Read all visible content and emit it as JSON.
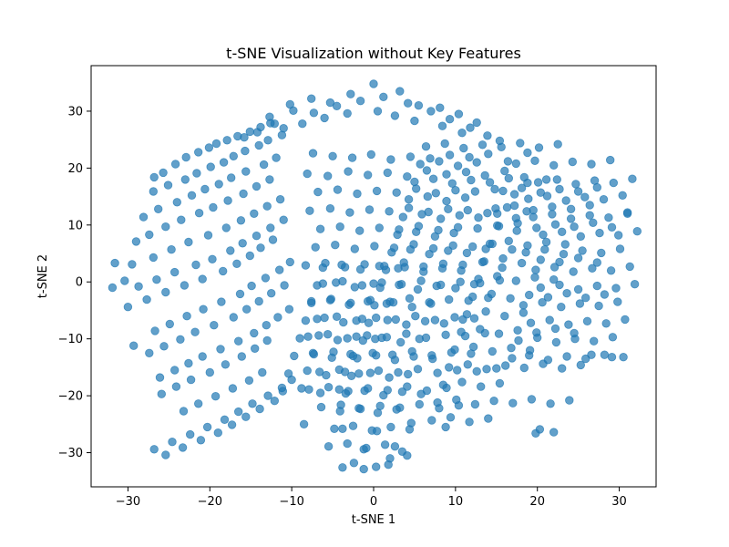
{
  "chart_data": {
    "type": "scatter",
    "title": "t-SNE Visualization without Key Features",
    "xlabel": "t-SNE 1",
    "ylabel": "t-SNE 2",
    "xlim": [
      -34.5,
      34.5
    ],
    "ylim": [
      -36,
      38
    ],
    "xticks": [
      -30,
      -20,
      -10,
      0,
      10,
      20,
      30
    ],
    "yticks": [
      -30,
      -20,
      -10,
      0,
      10,
      20,
      30
    ],
    "grid": false,
    "legend": "none",
    "marker_color": "#1f77b4",
    "marker_opacity": 0.7,
    "x": [
      0.0,
      3.2,
      -2.8,
      5.5,
      -5.3,
      8.1,
      -7.6,
      10.4,
      -10.2,
      12.6,
      -12.7,
      1.2,
      -1.6,
      4.2,
      -4.5,
      7.0,
      -7.3,
      9.3,
      -9.8,
      11.8,
      -12.1,
      0.5,
      2.6,
      -3.2,
      5.0,
      -6.0,
      8.4,
      -8.7,
      10.8,
      -11.0,
      13.9,
      -14.2,
      15.4,
      -15.8,
      -19.2,
      -20.1,
      -17.9,
      -21.4,
      -16.6,
      -22.9,
      -15.1,
      -24.2,
      -13.8,
      -25.7,
      -12.6,
      -26.8,
      -18.3,
      -19.9,
      -17.1,
      -21.6,
      -15.7,
      -23.0,
      -14.0,
      -25.1,
      -12.9,
      -26.9,
      -11.2,
      -20.6,
      -18.9,
      -22.2,
      -17.4,
      -24.0,
      -15.6,
      -26.3,
      -13.4,
      -28.1,
      -11.9,
      -21.3,
      -19.6,
      -23.5,
      -17.8,
      -25.4,
      -15.9,
      -27.4,
      -14.3,
      -29.0,
      -12.7,
      -20.2,
      -18.0,
      -22.6,
      -16.2,
      -24.7,
      -14.6,
      -26.9,
      -13.0,
      -29.5,
      -11.4,
      -19.7,
      -17.5,
      -21.7,
      -16.0,
      -24.3,
      -14.3,
      -26.5,
      -12.6,
      -28.7,
      -11.0,
      -20.9,
      -18.4,
      -23.1,
      -16.7,
      -25.4,
      -15.1,
      -27.7,
      -13.8,
      -30.0,
      -12.3,
      -31.6,
      -31.9,
      -30.4,
      -18.6,
      -16.3,
      -20.8,
      -14.9,
      -22.8,
      -13.2,
      -24.9,
      -11.5,
      -26.7,
      -10.2,
      -29.3,
      -19.5,
      -17.1,
      -21.8,
      -15.5,
      -23.6,
      -14.0,
      -25.6,
      -12.5,
      -27.4,
      -10.9,
      -18.7,
      -16.5,
      -20.9,
      -14.6,
      -22.6,
      -13.1,
      -24.3,
      -11.7,
      -26.1,
      -10.3,
      -20.0,
      -18.1,
      -22.3,
      -16.1,
      -24.1,
      -14.5,
      -25.9,
      -13.0,
      -19.3,
      -17.2,
      -21.4,
      -15.2,
      -23.2,
      -13.6,
      -18.2,
      -16.5,
      -20.3,
      -14.8,
      -22.4,
      -12.9,
      -24.6,
      -11.2,
      -26.8,
      -10.0,
      -19.0,
      -17.3,
      -21.1,
      -15.6,
      -23.3,
      -13.9,
      -25.4,
      -12.1,
      -7.4,
      -5.0,
      -2.6,
      -0.3,
      2.1,
      4.5,
      6.9,
      9.3,
      11.7,
      14.0,
      16.4,
      18.8,
      -8.1,
      -5.6,
      -3.1,
      -0.7,
      1.7,
      4.1,
      6.5,
      8.9,
      11.3,
      13.6,
      16.0,
      18.4,
      -6.8,
      -4.4,
      -2.0,
      0.4,
      2.8,
      5.2,
      7.6,
      10.0,
      12.4,
      14.8,
      17.2,
      -7.8,
      -5.3,
      -2.9,
      -0.5,
      1.9,
      4.3,
      6.7,
      9.1,
      11.5,
      13.9,
      16.3,
      18.7,
      -6.5,
      -4.1,
      -1.7,
      0.7,
      3.1,
      5.5,
      7.9,
      10.3,
      12.7,
      15.1,
      17.5,
      -7.1,
      -4.7,
      -2.3,
      0.1,
      2.5,
      4.9,
      7.3,
      9.7,
      12.1,
      14.5,
      16.9,
      -8.3,
      -5.9,
      -3.5,
      -1.1,
      1.3,
      3.7,
      6.1,
      8.5,
      10.9,
      13.3,
      15.7,
      -6.2,
      -3.8,
      -1.4,
      1.0,
      3.4,
      5.8,
      8.2,
      10.6,
      13.0,
      15.4,
      -7.6,
      -5.2,
      -2.8,
      -0.4,
      2.0,
      4.4,
      6.8,
      9.2,
      11.6,
      14.0,
      -6.9,
      -4.5,
      -2.1,
      0.3,
      2.7,
      5.1,
      7.5,
      9.9,
      12.3,
      -8.0,
      -5.6,
      -3.2,
      -0.8,
      1.6,
      4.0,
      6.4,
      8.8,
      11.2,
      13.6,
      -7.3,
      -4.9,
      -2.5,
      -0.1,
      2.3,
      4.7,
      7.1,
      9.5,
      11.9,
      -6.6,
      -4.2,
      -1.8,
      0.6,
      3.0,
      5.4,
      7.8,
      10.2,
      12.6,
      15.0,
      -7.9,
      -5.5,
      -3.1,
      -0.7,
      1.7,
      4.1,
      6.5,
      8.9,
      -6.4,
      -4.0,
      -1.6,
      0.8,
      3.2,
      5.6,
      8.0,
      10.4,
      -8.5,
      -3.8,
      0.4,
      4.6,
      8.8,
      -1.2,
      2.6,
      20.1,
      22.4,
      24.7,
      27.0,
      29.3,
      31.6,
      18.9,
      21.2,
      23.5,
      25.8,
      28.1,
      30.4,
      19.5,
      21.8,
      24.1,
      26.4,
      28.7,
      31.0,
      20.7,
      23.0,
      25.3,
      27.6,
      29.9,
      32.2,
      18.6,
      20.9,
      23.2,
      25.5,
      27.8,
      30.1,
      19.8,
      22.1,
      24.4,
      26.7,
      29.0,
      31.3,
      20.4,
      22.7,
      25.0,
      27.3,
      29.6,
      31.9,
      18.3,
      20.6,
      22.9,
      25.2,
      27.5,
      29.8,
      19.2,
      21.5,
      23.8,
      26.1,
      28.4,
      30.7,
      17.7,
      20.0,
      22.3,
      24.6,
      26.9,
      29.2,
      16.9,
      19.0,
      21.3,
      23.6,
      25.9,
      28.2,
      30.5,
      17.4,
      19.7,
      22.0,
      24.3,
      26.6,
      28.9,
      15.8,
      18.1,
      20.4,
      22.7,
      25.0,
      27.3,
      14.9,
      17.2,
      19.5,
      21.8,
      24.1,
      26.4,
      15.3,
      17.6,
      19.9,
      22.2,
      24.5,
      26.8,
      29.1,
      14.2,
      16.5,
      18.8,
      21.1,
      23.4,
      13.5,
      15.8,
      18.1,
      20.4,
      22.7,
      25.0,
      27.3,
      12.8,
      15.1,
      17.4,
      19.7,
      22.0,
      12.1,
      14.4,
      16.7,
      19.0,
      21.3,
      23.6,
      25.9,
      28.2,
      11.4,
      13.7,
      16.0,
      18.3,
      10.7,
      13.0,
      15.3,
      17.6,
      19.9,
      22.2,
      24.5,
      9.9,
      12.2,
      14.5,
      16.8,
      19.1,
      9.2,
      11.5,
      13.8,
      16.1,
      18.4,
      20.7,
      23.0,
      25.3,
      8.5,
      10.8,
      13.1,
      15.4,
      7.8,
      10.1,
      12.4,
      14.7,
      17.0,
      19.3,
      21.6,
      23.9,
      7.1,
      9.4,
      11.7,
      14.0,
      6.4,
      8.7,
      11.0,
      13.3,
      15.6,
      17.9,
      20.2,
      22.5,
      5.7,
      8.0,
      10.3,
      12.6,
      5.0,
      7.3,
      9.6,
      11.9,
      14.2,
      16.5,
      18.8,
      21.1,
      4.3,
      6.6,
      8.9,
      11.2,
      3.6,
      5.9,
      8.2,
      10.5,
      12.8,
      15.1,
      17.4,
      2.9,
      5.2,
      7.5,
      9.8,
      2.2,
      4.5,
      6.8,
      9.1,
      11.4,
      13.7,
      1.5,
      3.8,
      6.1,
      8.4,
      10.7,
      0.8,
      3.1,
      5.4,
      7.7,
      10.0,
      12.3,
      0.1,
      2.4,
      4.7,
      7.0,
      -0.6,
      1.7,
      4.0,
      6.3,
      8.6,
      10.9,
      -1.3,
      1.0,
      3.3,
      5.6,
      -2.0,
      0.3,
      2.6,
      4.9,
      7.2,
      -2.7,
      -0.4,
      1.9,
      4.2,
      -3.4,
      -1.1,
      1.2,
      3.5,
      5.8,
      -4.1,
      -1.8,
      0.5,
      2.8,
      -4.8,
      -2.5,
      -0.2,
      2.1,
      4.4,
      -5.5,
      -3.2,
      -0.9,
      1.4,
      -6.2,
      -3.9,
      -1.6,
      0.7,
      3.0,
      -6.9,
      -4.6,
      -2.3,
      0.0,
      -7.6,
      -5.3,
      -3.0,
      -0.7,
      1.6,
      -8.3,
      -6.0,
      -3.7,
      -1.4,
      -9.0,
      -6.7,
      -4.4,
      -2.1,
      0.2,
      -9.7,
      -7.4,
      -5.1,
      -2.8,
      -10.4,
      -8.1,
      -5.8,
      -3.5,
      -11.1,
      -8.8,
      -6.5,
      -4.2,
      -1.2,
      0.3,
      1.8,
      3.5,
      -3.8,
      4.1,
      -2.4,
      2.0,
      19.8,
      20.3,
      22.0,
      26.6,
      29.1,
      31.0
    ],
    "y": [
      34.8,
      33.5,
      33.0,
      31.0,
      31.5,
      30.6,
      32.2,
      29.5,
      31.2,
      28.0,
      29.0,
      32.5,
      31.8,
      31.4,
      30.9,
      30.0,
      29.7,
      28.6,
      30.1,
      27.1,
      27.8,
      30.0,
      29.2,
      29.6,
      28.3,
      28.8,
      27.4,
      27.8,
      26.2,
      27.0,
      25.7,
      26.3,
      24.8,
      25.4,
      24.3,
      23.6,
      24.9,
      22.8,
      25.6,
      21.9,
      26.4,
      20.7,
      27.2,
      19.2,
      27.9,
      18.4,
      21.0,
      20.2,
      22.1,
      19.1,
      23.0,
      18.0,
      24.0,
      17.0,
      24.9,
      15.9,
      25.8,
      16.3,
      17.2,
      15.2,
      18.3,
      14.0,
      19.4,
      12.8,
      20.6,
      11.4,
      21.8,
      12.1,
      13.1,
      10.9,
      14.3,
      9.7,
      15.5,
      8.3,
      16.8,
      7.1,
      18.0,
      8.2,
      9.5,
      7.0,
      10.8,
      5.7,
      12.0,
      4.3,
      13.3,
      3.1,
      14.5,
      4.0,
      5.5,
      3.0,
      6.8,
      1.7,
      8.1,
      0.4,
      9.5,
      -0.8,
      10.9,
      0.5,
      1.9,
      -0.6,
      3.2,
      -1.8,
      4.6,
      -3.1,
      6.0,
      -4.4,
      7.4,
      3.3,
      -1.0,
      0.2,
      -3.5,
      -2.1,
      -4.8,
      -0.7,
      -6.0,
      0.7,
      -7.4,
      2.1,
      -8.6,
      3.5,
      -11.2,
      -7.6,
      -6.2,
      -8.8,
      -4.8,
      -10.1,
      -3.4,
      -11.3,
      -2.0,
      -12.5,
      -0.6,
      -11.8,
      -10.4,
      -13.1,
      -9.0,
      -14.3,
      -7.6,
      -15.5,
      -6.2,
      -16.8,
      -4.8,
      -15.9,
      -14.5,
      -17.2,
      -13.1,
      -18.4,
      -11.7,
      -19.7,
      -10.3,
      -20.1,
      -18.7,
      -21.4,
      -17.3,
      -22.7,
      -15.9,
      -24.2,
      -22.8,
      -25.5,
      -21.4,
      -26.8,
      -20.0,
      -28.1,
      -18.6,
      -29.4,
      -17.2,
      -26.5,
      -25.1,
      -27.8,
      -23.7,
      -29.1,
      -22.3,
      -30.4,
      -20.9,
      22.6,
      22.1,
      21.8,
      22.4,
      21.5,
      22.0,
      21.7,
      22.3,
      21.9,
      22.5,
      21.2,
      22.7,
      19.0,
      18.6,
      19.4,
      18.8,
      19.2,
      18.5,
      19.6,
      18.9,
      19.3,
      18.7,
      19.5,
      18.4,
      15.8,
      16.2,
      15.5,
      16.0,
      15.7,
      16.4,
      15.6,
      16.1,
      15.9,
      16.3,
      15.4,
      12.5,
      12.9,
      12.2,
      12.7,
      12.4,
      13.0,
      12.3,
      12.8,
      12.6,
      12.1,
      13.1,
      12.4,
      9.3,
      9.7,
      9.0,
      9.5,
      9.2,
      9.8,
      9.1,
      9.6,
      9.4,
      9.9,
      9.0,
      6.1,
      6.5,
      5.8,
      6.3,
      6.0,
      6.6,
      5.9,
      6.4,
      6.2,
      6.7,
      5.7,
      2.9,
      3.3,
      2.6,
      3.1,
      2.8,
      3.4,
      2.7,
      3.2,
      3.0,
      3.5,
      2.5,
      -0.3,
      0.1,
      -0.6,
      -0.1,
      -0.4,
      0.2,
      -0.5,
      0.0,
      -0.2,
      0.3,
      -3.4,
      -3.0,
      -3.7,
      -3.2,
      -3.5,
      -2.9,
      -3.6,
      -3.1,
      -3.3,
      -2.8,
      -6.5,
      -6.1,
      -6.8,
      -6.3,
      -6.6,
      -6.0,
      -6.7,
      -6.2,
      -6.4,
      -9.6,
      -9.2,
      -9.9,
      -9.4,
      -9.7,
      -9.1,
      -9.8,
      -9.3,
      -9.5,
      -9.0,
      -12.7,
      -12.3,
      -13.0,
      -12.5,
      -12.8,
      -12.2,
      -12.9,
      -12.4,
      -12.6,
      -15.8,
      -15.4,
      -16.1,
      -15.6,
      -15.9,
      -15.3,
      -16.0,
      -15.5,
      -15.7,
      -15.2,
      -18.9,
      -18.5,
      -19.2,
      -18.7,
      -19.0,
      -18.4,
      -19.1,
      -18.6,
      -22.0,
      -21.6,
      -22.3,
      -21.8,
      -22.1,
      -21.5,
      -22.2,
      -21.7,
      -25.0,
      -25.8,
      -26.2,
      -24.8,
      -25.5,
      -29.4,
      -28.9,
      17.5,
      18.0,
      17.2,
      17.8,
      17.4,
      18.1,
      14.6,
      15.1,
      14.3,
      14.9,
      14.5,
      15.2,
      11.4,
      11.9,
      11.1,
      11.7,
      11.3,
      12.0,
      8.3,
      8.8,
      8.0,
      8.6,
      8.2,
      8.9,
      5.2,
      5.7,
      4.9,
      5.5,
      5.1,
      5.8,
      2.1,
      2.6,
      1.8,
      2.4,
      2.0,
      2.7,
      -1.0,
      -0.5,
      -1.3,
      -0.7,
      -1.1,
      -0.4,
      -4.1,
      -3.6,
      -4.4,
      -3.8,
      -4.2,
      -3.5,
      -7.2,
      -6.7,
      -7.5,
      -6.9,
      -7.3,
      -6.6,
      -10.3,
      -9.8,
      -10.6,
      -10.0,
      -10.4,
      -9.7,
      -13.4,
      -12.9,
      -13.7,
      -13.1,
      -13.5,
      -12.8,
      -13.2,
      20.8,
      21.3,
      20.5,
      21.1,
      20.7,
      21.4,
      16.0,
      16.5,
      15.7,
      16.3,
      15.9,
      16.6,
      12.9,
      13.4,
      12.6,
      13.2,
      12.8,
      13.5,
      9.8,
      10.3,
      9.5,
      10.1,
      9.7,
      10.4,
      9.6,
      6.7,
      7.2,
      6.4,
      7.0,
      6.6,
      3.6,
      4.1,
      3.3,
      3.9,
      3.5,
      4.2,
      3.4,
      0.5,
      1.0,
      0.2,
      0.8,
      0.4,
      -2.6,
      -2.1,
      -2.9,
      -2.3,
      -2.7,
      -2.0,
      -2.8,
      -2.2,
      -5.7,
      -5.2,
      -6.0,
      -5.4,
      -8.8,
      -8.3,
      -9.1,
      -8.5,
      -8.9,
      -8.2,
      -9.0,
      -11.9,
      -11.4,
      -12.2,
      -11.6,
      -12.0,
      -15.0,
      -14.5,
      -15.3,
      -14.7,
      -15.1,
      -14.4,
      -15.2,
      -14.6,
      -18.1,
      -17.6,
      -18.4,
      -17.8,
      -21.2,
      -20.7,
      -21.5,
      -20.9,
      -21.3,
      -20.6,
      -21.4,
      -20.8,
      -24.3,
      -23.8,
      -24.6,
      -24.0,
      23.8,
      24.3,
      23.5,
      24.1,
      23.7,
      24.4,
      23.6,
      24.2,
      20.7,
      21.2,
      20.4,
      21.0,
      17.6,
      18.1,
      17.3,
      17.9,
      17.5,
      18.2,
      17.4,
      18.0,
      14.5,
      15.0,
      14.2,
      14.8,
      11.4,
      11.9,
      11.1,
      11.7,
      11.3,
      12.0,
      11.2,
      8.3,
      8.8,
      8.0,
      8.6,
      5.2,
      5.7,
      4.9,
      5.5,
      5.1,
      5.8,
      2.1,
      2.6,
      1.8,
      2.4,
      2.0,
      -1.0,
      -0.5,
      -1.3,
      -0.7,
      -1.1,
      -0.4,
      -4.1,
      -3.6,
      -4.4,
      -3.8,
      -7.2,
      -6.7,
      -7.5,
      -6.9,
      -7.3,
      -6.6,
      -10.3,
      -9.8,
      -10.6,
      -10.0,
      -13.4,
      -12.9,
      -13.7,
      -13.1,
      -13.5,
      -16.5,
      -16.0,
      -16.8,
      -16.2,
      -19.6,
      -19.1,
      -19.9,
      -19.3,
      -19.7,
      -22.7,
      -22.2,
      -23.0,
      -22.4,
      -25.8,
      -25.3,
      -26.1,
      -25.5,
      -25.9,
      -28.9,
      -28.4,
      -29.2,
      -28.6,
      2.5,
      3.0,
      2.2,
      2.8,
      2.4,
      -0.6,
      -0.1,
      -0.9,
      -0.3,
      -3.7,
      -3.2,
      -4.0,
      -3.4,
      -3.8,
      -6.8,
      -6.3,
      -7.1,
      -6.5,
      -9.9,
      -9.4,
      -10.2,
      -9.6,
      -10.0,
      -13.0,
      -12.5,
      -13.3,
      -12.7,
      -16.1,
      -15.6,
      -16.4,
      -15.8,
      -19.2,
      -18.7,
      -19.5,
      -18.9,
      -32.9,
      -32.5,
      -32.1,
      -29.8,
      -32.6,
      -30.5,
      -31.8,
      -31.0,
      -26.6,
      -25.9,
      -26.4,
      -12.8,
      -13.2,
      12.2
    ]
  }
}
